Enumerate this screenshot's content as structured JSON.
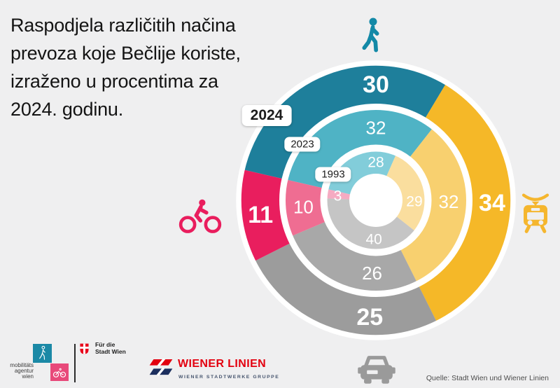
{
  "title": {
    "lines": [
      "Raspodjela različitih načina",
      "prevoza koje Bečlije koriste,",
      "izraženo u procentima za",
      "2024. godinu."
    ]
  },
  "chart_data": {
    "type": "pie",
    "variant": "nested_donut_rings",
    "unit": "%",
    "categories": [
      "walking",
      "public-transit",
      "car",
      "bicycle"
    ],
    "start_angle_deg_from_top": -77,
    "rings": [
      {
        "year": "2024",
        "values": [
          30,
          34,
          25,
          11
        ],
        "colors": [
          "#1e7f9b",
          "#f5b828",
          "#9c9c9c",
          "#e91e5e"
        ]
      },
      {
        "year": "2023",
        "values": [
          32,
          32,
          26,
          10
        ],
        "colors": [
          "#4fb3c5",
          "#f8d06f",
          "#a8a8a8",
          "#ef6d92"
        ]
      },
      {
        "year": "1993",
        "values": [
          28,
          29,
          40,
          3
        ],
        "colors": [
          "#82cdda",
          "#fade9e",
          "#c5c5c5",
          "#f5abc2"
        ]
      }
    ],
    "legend_position": "icons-around-chart"
  },
  "icons": {
    "walker": {
      "label": "walker-icon",
      "color": "#1389a7"
    },
    "tram": {
      "label": "tram-icon",
      "color": "#f5b62e"
    },
    "bicycle": {
      "label": "bicycle-icon",
      "color": "#e91d5d"
    },
    "car": {
      "label": "car-icon",
      "color": "#9a9a9a"
    }
  },
  "footer": {
    "mobilitaetsagentur": {
      "lines": [
        "mobilitäts",
        "agentur",
        "wien"
      ]
    },
    "stadt_wien": {
      "lines": [
        "Für die",
        "Stadt Wien"
      ]
    },
    "wiener_linien": {
      "name": "WIENER LINIEN",
      "subtitle": "WIENER STADTWERKE GRUPPE"
    },
    "source": "Quelle: Stadt Wien und Wiener Linien"
  }
}
